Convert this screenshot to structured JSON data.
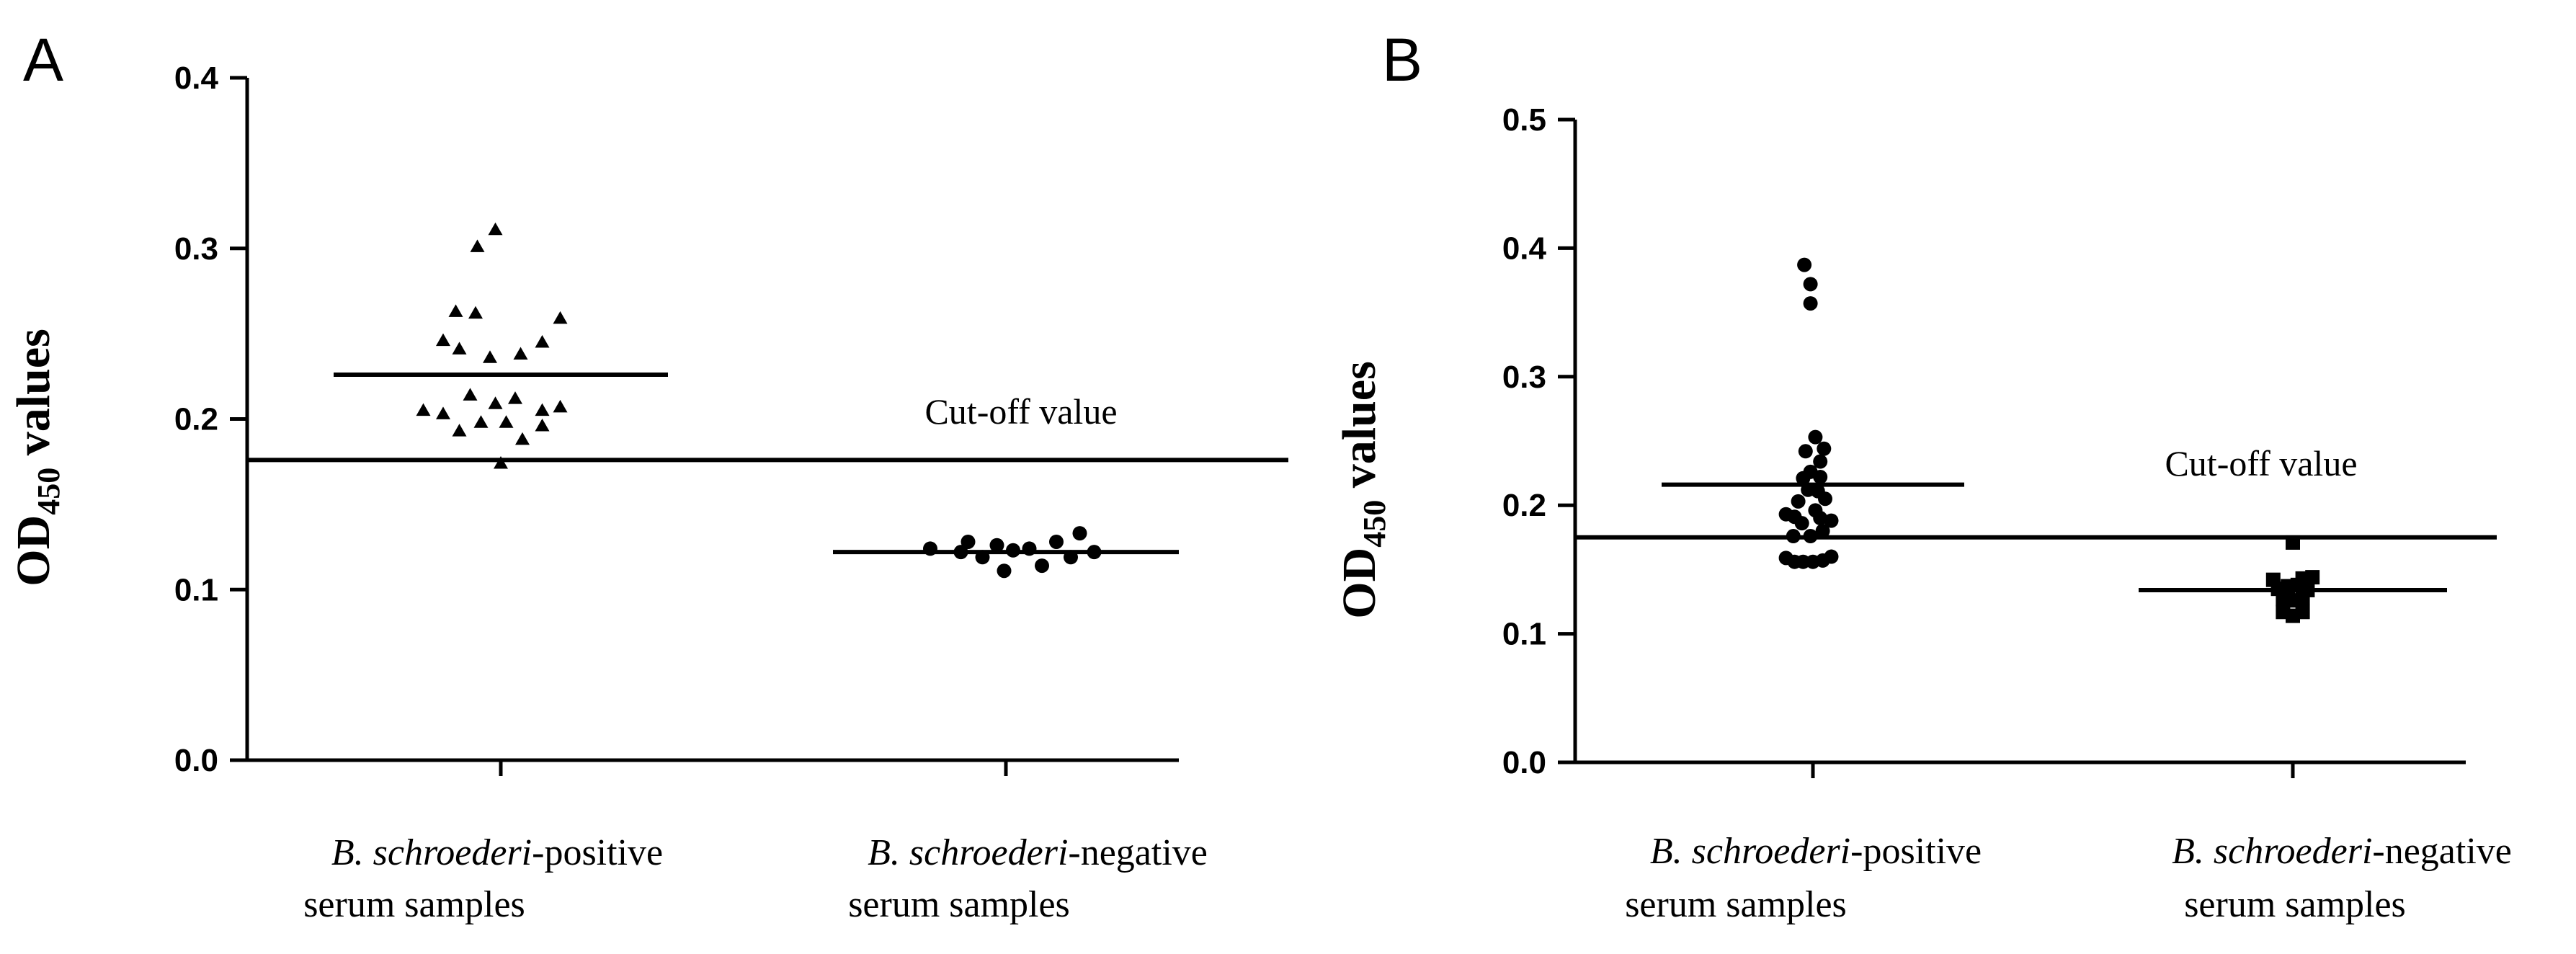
{
  "chart_data": [
    {
      "type": "scatter",
      "panel": "A",
      "ylabel_main": "OD",
      "ylabel_sub": "450",
      "ylabel_tail": " values",
      "ylim": [
        0,
        0.4
      ],
      "yticks": [
        "0.0",
        "0.1",
        "0.2",
        "0.3",
        "0.4"
      ],
      "categories": [
        {
          "italic": "B. schroederi",
          "rest": "-positive",
          "line2": "serum samples"
        },
        {
          "italic": "B. schroederi",
          "rest": "-negative",
          "line2": "serum samples"
        }
      ],
      "cutoff": {
        "value": 0.176,
        "label": "Cut-off value"
      },
      "series": [
        {
          "name": "B. schroederi-positive serum samples",
          "marker": "triangle",
          "mean": 0.226,
          "points": [
            [
              -0.03,
              0.311
            ],
            [
              -0.13,
              0.301
            ],
            [
              -0.25,
              0.263
            ],
            [
              -0.14,
              0.262
            ],
            [
              0.33,
              0.259
            ],
            [
              -0.32,
              0.246
            ],
            [
              -0.23,
              0.241
            ],
            [
              0.23,
              0.245
            ],
            [
              -0.06,
              0.236
            ],
            [
              0.11,
              0.238
            ],
            [
              -0.17,
              0.214
            ],
            [
              0.08,
              0.212
            ],
            [
              0.33,
              0.207
            ],
            [
              -0.43,
              0.205
            ],
            [
              -0.32,
              0.203
            ],
            [
              -0.03,
              0.209
            ],
            [
              0.23,
              0.205
            ],
            [
              -0.11,
              0.198
            ],
            [
              0.03,
              0.198
            ],
            [
              -0.23,
              0.193
            ],
            [
              0.23,
              0.196
            ],
            [
              0.12,
              0.188
            ],
            [
              0.0,
              0.174
            ]
          ]
        },
        {
          "name": "B. schroederi-negative serum samples",
          "marker": "circle",
          "mean": 0.122,
          "points": [
            [
              -0.42,
              0.124
            ],
            [
              -0.25,
              0.122
            ],
            [
              -0.21,
              0.128
            ],
            [
              -0.13,
              0.119
            ],
            [
              -0.05,
              0.126
            ],
            [
              0.04,
              0.123
            ],
            [
              -0.01,
              0.111
            ],
            [
              0.13,
              0.124
            ],
            [
              0.2,
              0.114
            ],
            [
              0.28,
              0.128
            ],
            [
              0.36,
              0.119
            ],
            [
              0.41,
              0.133
            ],
            [
              0.49,
              0.122
            ]
          ]
        }
      ]
    },
    {
      "type": "scatter",
      "panel": "B",
      "ylabel_main": "OD",
      "ylabel_sub": "450",
      "ylabel_tail": " values",
      "ylim": [
        0,
        0.5
      ],
      "yticks": [
        "0.0",
        "0.1",
        "0.2",
        "0.3",
        "0.4",
        "0.5"
      ],
      "categories": [
        {
          "italic": "B. schroederi",
          "rest": "-positive",
          "line2": "serum samples"
        },
        {
          "italic": "B. schroederi",
          "rest": "-negative",
          "line2": "serum samples"
        }
      ],
      "cutoff": {
        "value": 0.175,
        "label": "Cut-off value"
      },
      "series": [
        {
          "name": "B. schroederi-positive serum samples",
          "marker": "circle",
          "mean": 0.216,
          "points": [
            [
              -0.07,
              0.387
            ],
            [
              -0.02,
              0.372
            ],
            [
              -0.02,
              0.357
            ],
            [
              0.02,
              0.253
            ],
            [
              0.09,
              0.244
            ],
            [
              -0.06,
              0.242
            ],
            [
              0.06,
              0.234
            ],
            [
              -0.02,
              0.226
            ],
            [
              -0.08,
              0.221
            ],
            [
              0.06,
              0.222
            ],
            [
              -0.04,
              0.212
            ],
            [
              0.04,
              0.211
            ],
            [
              -0.12,
              0.203
            ],
            [
              0.1,
              0.205
            ],
            [
              0.02,
              0.196
            ],
            [
              -0.22,
              0.193
            ],
            [
              -0.15,
              0.191
            ],
            [
              -0.09,
              0.186
            ],
            [
              0.06,
              0.19
            ],
            [
              0.15,
              0.188
            ],
            [
              -0.16,
              0.176
            ],
            [
              -0.02,
              0.176
            ],
            [
              0.08,
              0.18
            ],
            [
              -0.22,
              0.159
            ],
            [
              -0.15,
              0.156
            ],
            [
              -0.08,
              0.156
            ],
            [
              0.0,
              0.156
            ],
            [
              0.08,
              0.157
            ],
            [
              0.15,
              0.16
            ]
          ]
        },
        {
          "name": "B. schroederi-negative serum samples",
          "marker": "square",
          "mean": 0.134,
          "points": [
            [
              0.0,
              0.171
            ],
            [
              -0.16,
              0.142
            ],
            [
              0.08,
              0.143
            ],
            [
              0.16,
              0.144
            ],
            [
              -0.12,
              0.135
            ],
            [
              -0.04,
              0.137
            ],
            [
              0.04,
              0.138
            ],
            [
              0.12,
              0.134
            ],
            [
              -0.08,
              0.127
            ],
            [
              0.0,
              0.126
            ],
            [
              0.08,
              0.128
            ],
            [
              -0.08,
              0.117
            ],
            [
              0.0,
              0.114
            ],
            [
              0.08,
              0.117
            ]
          ]
        }
      ]
    }
  ]
}
